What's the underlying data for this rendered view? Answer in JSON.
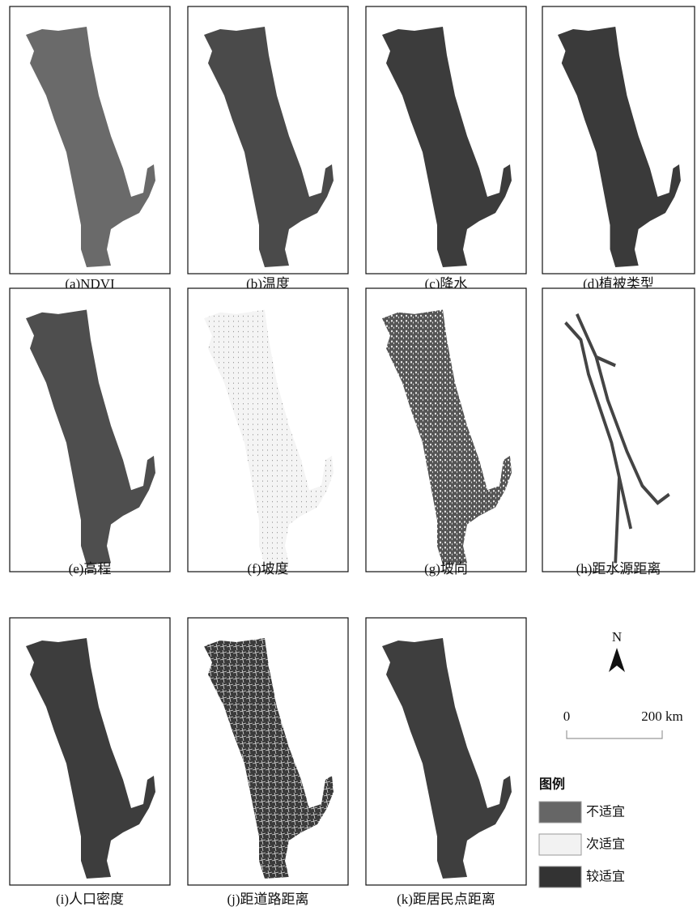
{
  "panels": [
    {
      "caption": "(a)NDVI"
    },
    {
      "caption": "(b)温度"
    },
    {
      "caption": "(c)降水"
    },
    {
      "caption": "(d)植被类型"
    },
    {
      "caption": "(e)高程"
    },
    {
      "caption": "(f)坡度"
    },
    {
      "caption": "(g)坡向"
    },
    {
      "caption": "(h)距水源距离"
    },
    {
      "caption": "(i)人口密度"
    },
    {
      "caption": "(j)距道路距离"
    },
    {
      "caption": "(k)距居民点距离"
    }
  ],
  "north": "N",
  "scale": {
    "start": "0",
    "end": "200 km"
  },
  "legend": {
    "title": "图例",
    "items": [
      "不适宜",
      "次适宜",
      "较适宜"
    ]
  }
}
